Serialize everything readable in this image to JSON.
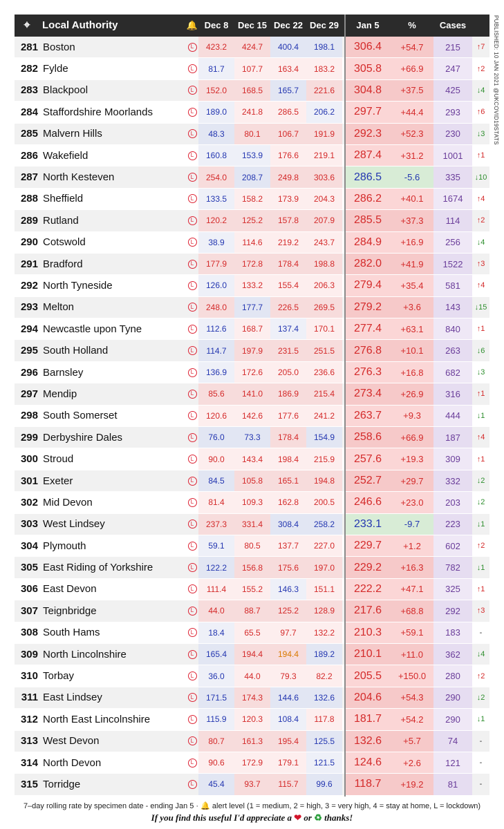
{
  "header": {
    "pin_icon": "map-pin-icon",
    "local_authority": "Local Authority",
    "bell_icon": "bell-icon",
    "dec8": "Dec 8",
    "dec15": "Dec 15",
    "dec22": "Dec 22",
    "dec29": "Dec 29",
    "jan5": "Jan 5",
    "pct": "%",
    "cases": "Cases"
  },
  "side_text": "PUBLISHED: 10 JAN 2021    @UKCOVID19STATS",
  "lockdown_glyph": "L",
  "colors": {
    "red": "#d42a2a",
    "blue": "#2336b0",
    "green": "#2f8f2f",
    "orange": "#d97a00",
    "purple": "#6a3d9a"
  },
  "rows": [
    {
      "rank": "281",
      "name": "Boston",
      "d8": "423.2",
      "d15": "424.7",
      "d22": "400.4",
      "d29": "198.1",
      "jan5": "306.4",
      "pct": "+54.7",
      "cases": "215",
      "arrow": "↑7",
      "t": [
        "r",
        "r",
        "b",
        "b",
        "r",
        "r",
        "u"
      ]
    },
    {
      "rank": "282",
      "name": "Fylde",
      "d8": "81.7",
      "d15": "107.7",
      "d22": "163.4",
      "d29": "183.2",
      "jan5": "305.8",
      "pct": "+66.9",
      "cases": "247",
      "arrow": "↑2",
      "t": [
        "b",
        "r",
        "r",
        "r",
        "r",
        "r",
        "u"
      ]
    },
    {
      "rank": "283",
      "name": "Blackpool",
      "d8": "152.0",
      "d15": "168.5",
      "d22": "165.7",
      "d29": "221.6",
      "jan5": "304.8",
      "pct": "+37.5",
      "cases": "425",
      "arrow": "↓4",
      "t": [
        "r",
        "r",
        "b",
        "r",
        "r",
        "r",
        "d"
      ]
    },
    {
      "rank": "284",
      "name": "Staffordshire Moorlands",
      "d8": "189.0",
      "d15": "241.8",
      "d22": "286.5",
      "d29": "206.2",
      "jan5": "297.7",
      "pct": "+44.4",
      "cases": "293",
      "arrow": "↑6",
      "t": [
        "b",
        "r",
        "r",
        "b",
        "r",
        "r",
        "u"
      ]
    },
    {
      "rank": "285",
      "name": "Malvern Hills",
      "d8": "48.3",
      "d15": "80.1",
      "d22": "106.7",
      "d29": "191.9",
      "jan5": "292.3",
      "pct": "+52.3",
      "cases": "230",
      "arrow": "↓3",
      "t": [
        "b",
        "r",
        "r",
        "r",
        "r",
        "r",
        "d"
      ]
    },
    {
      "rank": "286",
      "name": "Wakefield",
      "d8": "160.8",
      "d15": "153.9",
      "d22": "176.6",
      "d29": "219.1",
      "jan5": "287.4",
      "pct": "+31.2",
      "cases": "1001",
      "arrow": "↑1",
      "t": [
        "b",
        "b",
        "r",
        "r",
        "r",
        "r",
        "u"
      ]
    },
    {
      "rank": "287",
      "name": "North Kesteven",
      "d8": "254.0",
      "d15": "208.7",
      "d22": "249.8",
      "d29": "303.6",
      "jan5": "286.5",
      "pct": "-5.6",
      "cases": "335",
      "arrow": "↓10",
      "t": [
        "r",
        "b",
        "r",
        "r",
        "b",
        "b",
        "d"
      ]
    },
    {
      "rank": "288",
      "name": "Sheffield",
      "d8": "133.5",
      "d15": "158.2",
      "d22": "173.9",
      "d29": "204.3",
      "jan5": "286.2",
      "pct": "+40.1",
      "cases": "1674",
      "arrow": "↑4",
      "t": [
        "b",
        "r",
        "r",
        "r",
        "r",
        "r",
        "u"
      ]
    },
    {
      "rank": "289",
      "name": "Rutland",
      "d8": "120.2",
      "d15": "125.2",
      "d22": "157.8",
      "d29": "207.9",
      "jan5": "285.5",
      "pct": "+37.3",
      "cases": "114",
      "arrow": "↑2",
      "t": [
        "r",
        "r",
        "r",
        "r",
        "r",
        "r",
        "u"
      ]
    },
    {
      "rank": "290",
      "name": "Cotswold",
      "d8": "38.9",
      "d15": "114.6",
      "d22": "219.2",
      "d29": "243.7",
      "jan5": "284.9",
      "pct": "+16.9",
      "cases": "256",
      "arrow": "↓4",
      "t": [
        "b",
        "r",
        "r",
        "r",
        "r",
        "r",
        "d"
      ]
    },
    {
      "rank": "291",
      "name": "Bradford",
      "d8": "177.9",
      "d15": "172.8",
      "d22": "178.4",
      "d29": "198.8",
      "jan5": "282.0",
      "pct": "+41.9",
      "cases": "1522",
      "arrow": "↑3",
      "t": [
        "r",
        "r",
        "r",
        "r",
        "r",
        "r",
        "u"
      ]
    },
    {
      "rank": "292",
      "name": "North Tyneside",
      "d8": "126.0",
      "d15": "133.2",
      "d22": "155.4",
      "d29": "206.3",
      "jan5": "279.4",
      "pct": "+35.4",
      "cases": "581",
      "arrow": "↑4",
      "t": [
        "b",
        "r",
        "r",
        "r",
        "r",
        "r",
        "u"
      ]
    },
    {
      "rank": "293",
      "name": "Melton",
      "d8": "248.0",
      "d15": "177.7",
      "d22": "226.5",
      "d29": "269.5",
      "jan5": "279.2",
      "pct": "+3.6",
      "cases": "143",
      "arrow": "↓15",
      "t": [
        "r",
        "b",
        "r",
        "r",
        "r",
        "r",
        "d"
      ]
    },
    {
      "rank": "294",
      "name": "Newcastle upon Tyne",
      "d8": "112.6",
      "d15": "168.7",
      "d22": "137.4",
      "d29": "170.1",
      "jan5": "277.4",
      "pct": "+63.1",
      "cases": "840",
      "arrow": "↑1",
      "t": [
        "b",
        "r",
        "b",
        "r",
        "r",
        "r",
        "u"
      ]
    },
    {
      "rank": "295",
      "name": "South Holland",
      "d8": "114.7",
      "d15": "197.9",
      "d22": "231.5",
      "d29": "251.5",
      "jan5": "276.8",
      "pct": "+10.1",
      "cases": "263",
      "arrow": "↓6",
      "t": [
        "b",
        "r",
        "r",
        "r",
        "r",
        "r",
        "d"
      ]
    },
    {
      "rank": "296",
      "name": "Barnsley",
      "d8": "136.9",
      "d15": "172.6",
      "d22": "205.0",
      "d29": "236.6",
      "jan5": "276.3",
      "pct": "+16.8",
      "cases": "682",
      "arrow": "↓3",
      "t": [
        "b",
        "r",
        "r",
        "r",
        "r",
        "r",
        "d"
      ]
    },
    {
      "rank": "297",
      "name": "Mendip",
      "d8": "85.6",
      "d15": "141.0",
      "d22": "186.9",
      "d29": "215.4",
      "jan5": "273.4",
      "pct": "+26.9",
      "cases": "316",
      "arrow": "↑1",
      "t": [
        "r",
        "r",
        "r",
        "r",
        "r",
        "r",
        "u"
      ]
    },
    {
      "rank": "298",
      "name": "South Somerset",
      "d8": "120.6",
      "d15": "142.6",
      "d22": "177.6",
      "d29": "241.2",
      "jan5": "263.7",
      "pct": "+9.3",
      "cases": "444",
      "arrow": "↓1",
      "t": [
        "r",
        "r",
        "r",
        "r",
        "r",
        "r",
        "d"
      ]
    },
    {
      "rank": "299",
      "name": "Derbyshire Dales",
      "d8": "76.0",
      "d15": "73.3",
      "d22": "178.4",
      "d29": "154.9",
      "jan5": "258.6",
      "pct": "+66.9",
      "cases": "187",
      "arrow": "↑4",
      "t": [
        "b",
        "b",
        "r",
        "b",
        "r",
        "r",
        "u"
      ]
    },
    {
      "rank": "300",
      "name": "Stroud",
      "d8": "90.0",
      "d15": "143.4",
      "d22": "198.4",
      "d29": "215.9",
      "jan5": "257.6",
      "pct": "+19.3",
      "cases": "309",
      "arrow": "↑1",
      "t": [
        "r",
        "r",
        "r",
        "r",
        "r",
        "r",
        "u"
      ]
    },
    {
      "rank": "301",
      "name": "Exeter",
      "d8": "84.5",
      "d15": "105.8",
      "d22": "165.1",
      "d29": "194.8",
      "jan5": "252.7",
      "pct": "+29.7",
      "cases": "332",
      "arrow": "↓2",
      "t": [
        "b",
        "r",
        "r",
        "r",
        "r",
        "r",
        "d"
      ]
    },
    {
      "rank": "302",
      "name": "Mid Devon",
      "d8": "81.4",
      "d15": "109.3",
      "d22": "162.8",
      "d29": "200.5",
      "jan5": "246.6",
      "pct": "+23.0",
      "cases": "203",
      "arrow": "↓2",
      "t": [
        "r",
        "r",
        "r",
        "r",
        "r",
        "r",
        "d"
      ]
    },
    {
      "rank": "303",
      "name": "West Lindsey",
      "d8": "237.3",
      "d15": "331.4",
      "d22": "308.4",
      "d29": "258.2",
      "jan5": "233.1",
      "pct": "-9.7",
      "cases": "223",
      "arrow": "↓1",
      "t": [
        "r",
        "r",
        "b",
        "b",
        "b",
        "b",
        "d"
      ]
    },
    {
      "rank": "304",
      "name": "Plymouth",
      "d8": "59.1",
      "d15": "80.5",
      "d22": "137.7",
      "d29": "227.0",
      "jan5": "229.7",
      "pct": "+1.2",
      "cases": "602",
      "arrow": "↑2",
      "t": [
        "b",
        "r",
        "r",
        "r",
        "r",
        "r",
        "u"
      ]
    },
    {
      "rank": "305",
      "name": "East Riding of Yorkshire",
      "d8": "122.2",
      "d15": "156.8",
      "d22": "175.6",
      "d29": "197.0",
      "jan5": "229.2",
      "pct": "+16.3",
      "cases": "782",
      "arrow": "↓1",
      "t": [
        "b",
        "r",
        "r",
        "r",
        "r",
        "r",
        "d"
      ]
    },
    {
      "rank": "306",
      "name": "East Devon",
      "d8": "111.4",
      "d15": "155.2",
      "d22": "146.3",
      "d29": "151.1",
      "jan5": "222.2",
      "pct": "+47.1",
      "cases": "325",
      "arrow": "↑1",
      "t": [
        "r",
        "r",
        "b",
        "r",
        "r",
        "r",
        "u"
      ]
    },
    {
      "rank": "307",
      "name": "Teignbridge",
      "d8": "44.0",
      "d15": "88.7",
      "d22": "125.2",
      "d29": "128.9",
      "jan5": "217.6",
      "pct": "+68.8",
      "cases": "292",
      "arrow": "↑3",
      "t": [
        "r",
        "r",
        "r",
        "r",
        "r",
        "r",
        "u"
      ]
    },
    {
      "rank": "308",
      "name": "South Hams",
      "d8": "18.4",
      "d15": "65.5",
      "d22": "97.7",
      "d29": "132.2",
      "jan5": "210.3",
      "pct": "+59.1",
      "cases": "183",
      "arrow": "-",
      "t": [
        "b",
        "r",
        "r",
        "r",
        "r",
        "r",
        "n"
      ]
    },
    {
      "rank": "309",
      "name": "North Lincolnshire",
      "d8": "165.4",
      "d15": "194.4",
      "d22": "194.4",
      "d29": "189.2",
      "jan5": "210.1",
      "pct": "+11.0",
      "cases": "362",
      "arrow": "↓4",
      "t": [
        "b",
        "r",
        "o",
        "b",
        "r",
        "r",
        "d"
      ]
    },
    {
      "rank": "310",
      "name": "Torbay",
      "d8": "36.0",
      "d15": "44.0",
      "d22": "79.3",
      "d29": "82.2",
      "jan5": "205.5",
      "pct": "+150.0",
      "cases": "280",
      "arrow": "↑2",
      "t": [
        "b",
        "r",
        "r",
        "r",
        "r",
        "r",
        "u"
      ]
    },
    {
      "rank": "311",
      "name": "East Lindsey",
      "d8": "171.5",
      "d15": "174.3",
      "d22": "144.6",
      "d29": "132.6",
      "jan5": "204.6",
      "pct": "+54.3",
      "cases": "290",
      "arrow": "↓2",
      "t": [
        "b",
        "r",
        "b",
        "b",
        "r",
        "r",
        "d"
      ]
    },
    {
      "rank": "312",
      "name": "North East Lincolnshire",
      "d8": "115.9",
      "d15": "120.3",
      "d22": "108.4",
      "d29": "117.8",
      "jan5": "181.7",
      "pct": "+54.2",
      "cases": "290",
      "arrow": "↓1",
      "t": [
        "b",
        "r",
        "b",
        "r",
        "r",
        "r",
        "d"
      ]
    },
    {
      "rank": "313",
      "name": "West Devon",
      "d8": "80.7",
      "d15": "161.3",
      "d22": "195.4",
      "d29": "125.5",
      "jan5": "132.6",
      "pct": "+5.7",
      "cases": "74",
      "arrow": "-",
      "t": [
        "r",
        "r",
        "r",
        "b",
        "r",
        "r",
        "n"
      ]
    },
    {
      "rank": "314",
      "name": "North Devon",
      "d8": "90.6",
      "d15": "172.9",
      "d22": "179.1",
      "d29": "121.5",
      "jan5": "124.6",
      "pct": "+2.6",
      "cases": "121",
      "arrow": "-",
      "t": [
        "r",
        "r",
        "r",
        "b",
        "r",
        "r",
        "n"
      ]
    },
    {
      "rank": "315",
      "name": "Torridge",
      "d8": "45.4",
      "d15": "93.7",
      "d22": "115.7",
      "d29": "99.6",
      "jan5": "118.7",
      "pct": "+19.2",
      "cases": "81",
      "arrow": "-",
      "t": [
        "b",
        "r",
        "r",
        "b",
        "r",
        "r",
        "n"
      ]
    }
  ],
  "footer": {
    "note": "7–day rolling rate by specimen date - ending Jan 5 · 🔔 alert level (1 = medium, 2 = high, 3 = very high, 4 = stay at home, L = lockdown)",
    "thanks_a": "If you find this useful I'd appreciate a",
    "thanks_or": "or",
    "thanks_b": "thanks!",
    "heart_icon": "heart-icon",
    "retweet_icon": "retweet-icon"
  }
}
